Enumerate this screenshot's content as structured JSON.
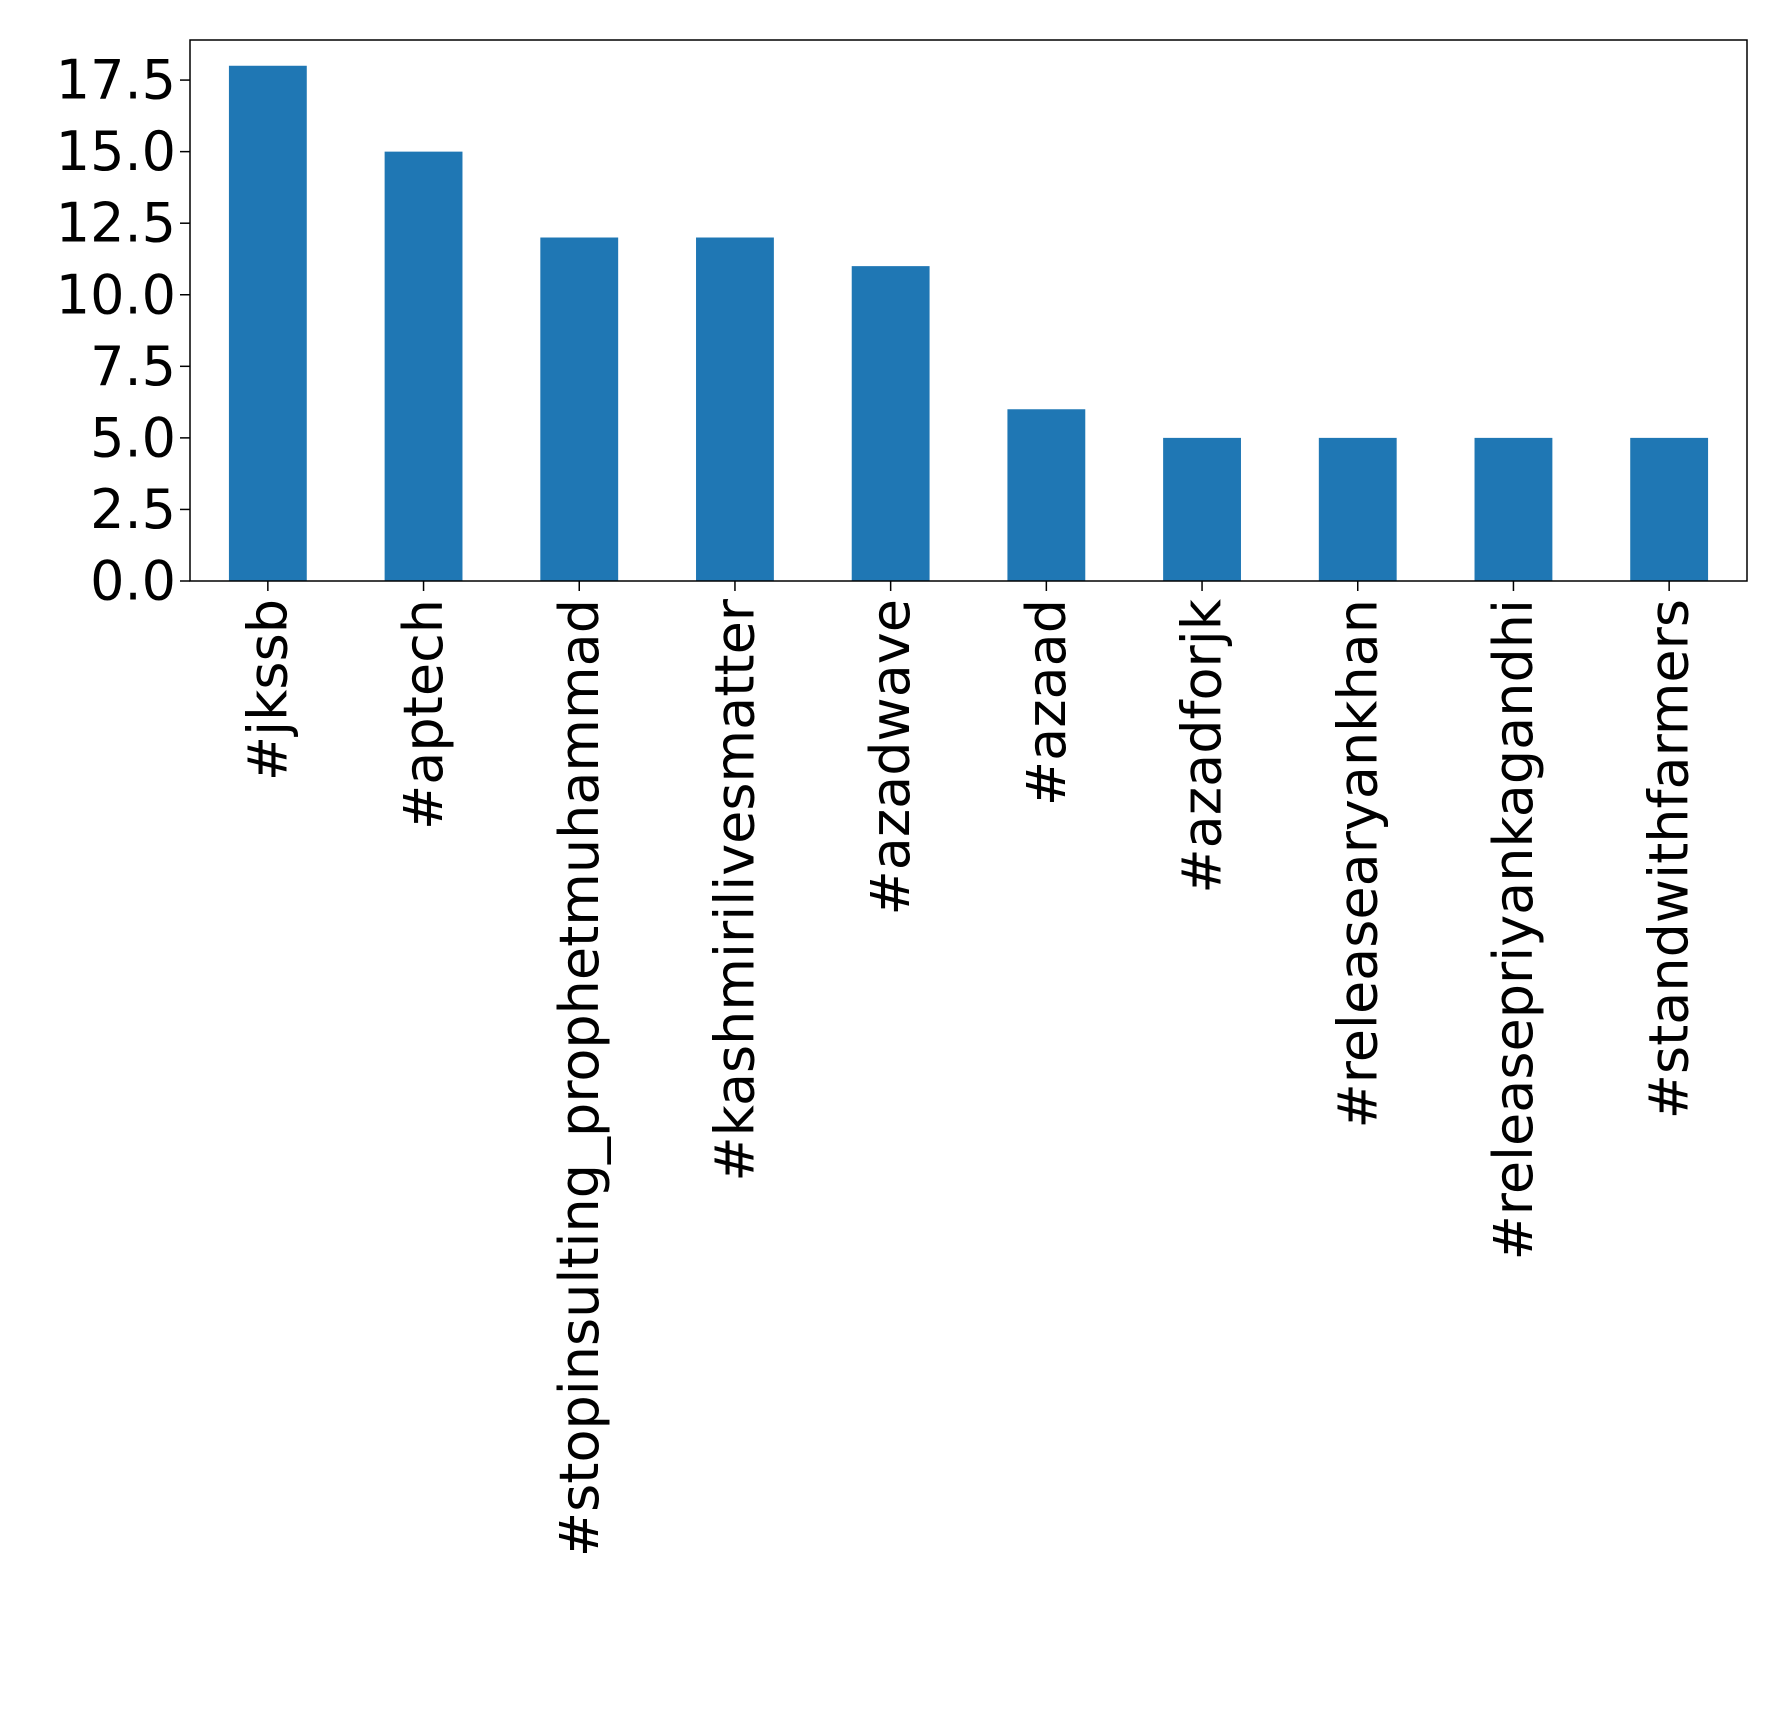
{
  "chart_data": {
    "type": "bar",
    "title": "",
    "xlabel": "",
    "ylabel": "",
    "categories": [
      "#jkssb",
      "#aptech",
      "#stopinsulting_prophetmuhammad",
      "#kashmirilivesmatter",
      "#azadwave",
      "#azaad",
      "#azadforjk",
      "#releasearyankhan",
      "#releasepriyankagandhi",
      "#standwithfarmers"
    ],
    "values": [
      18,
      15,
      12,
      12,
      11,
      6,
      5,
      5,
      5,
      5
    ],
    "ylim": [
      0,
      18.9
    ],
    "yticks": [
      0.0,
      2.5,
      5.0,
      7.5,
      10.0,
      12.5,
      15.0,
      17.5
    ],
    "ytick_labels": [
      "0.0",
      "2.5",
      "5.0",
      "7.5",
      "10.0",
      "12.5",
      "15.0",
      "17.5"
    ],
    "grid": false,
    "legend": "none",
    "colors": {
      "bar": "#1f77b4",
      "axes": "#000000",
      "background": "#ffffff"
    }
  }
}
